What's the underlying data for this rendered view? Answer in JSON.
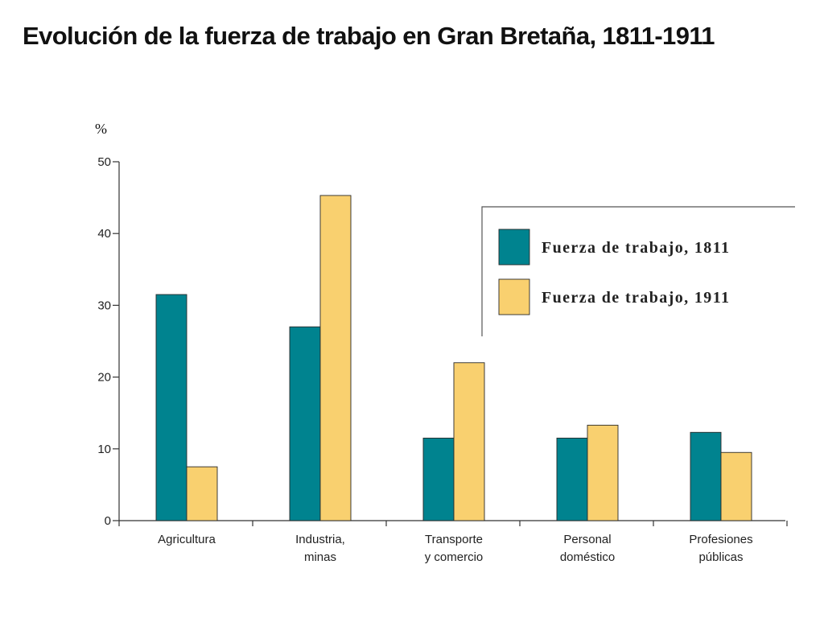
{
  "title": "Evolución de la fuerza de trabajo en Gran Bretaña, 1811-1911",
  "chart_data": {
    "type": "bar",
    "title": "Evolución de la fuerza de trabajo en Gran Bretaña, 1811-1911",
    "ylabel": "%",
    "xlabel": "",
    "ylim": [
      0,
      50
    ],
    "yticks": [
      0,
      10,
      20,
      30,
      40,
      50
    ],
    "ytick_labels": [
      "0",
      "10",
      "20",
      "30",
      "40",
      "50"
    ],
    "categories": [
      [
        "Agricultura"
      ],
      [
        "Industria,",
        "minas"
      ],
      [
        "Transporte",
        "y comercio"
      ],
      [
        "Personal",
        "doméstico"
      ],
      [
        "Profesiones",
        "públicas"
      ]
    ],
    "series": [
      {
        "name": "Fuerza de trabajo, 1811",
        "color": "#00838f",
        "values": [
          31.5,
          27,
          11.5,
          11.5,
          12.3
        ]
      },
      {
        "name": "Fuerza de trabajo, 1911",
        "color": "#f9d06f",
        "values": [
          7.5,
          45.3,
          22,
          13.3,
          9.5
        ]
      }
    ],
    "legend_position": "top-right",
    "grid": false
  }
}
